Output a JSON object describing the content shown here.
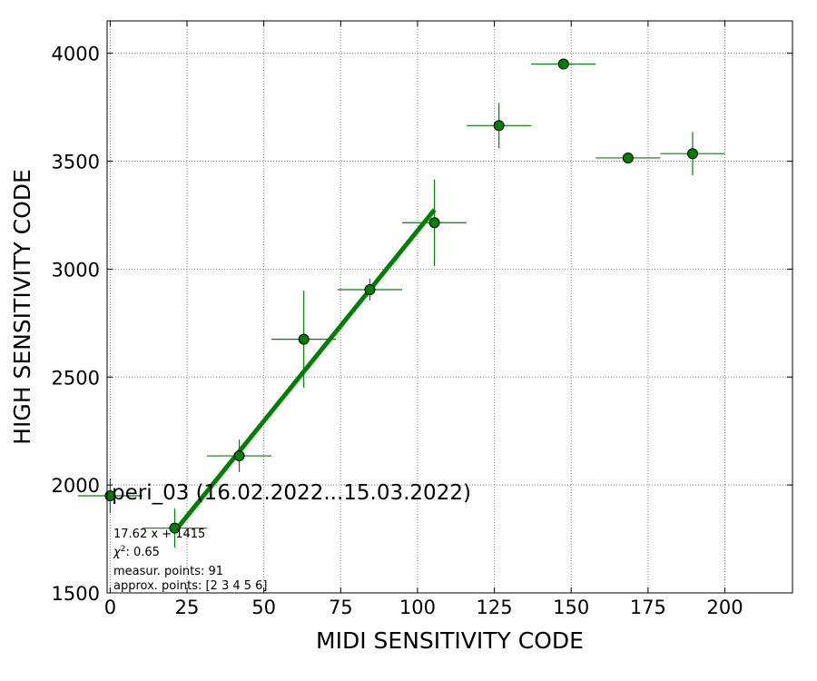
{
  "chart_data": {
    "type": "scatter",
    "xlabel": "MIDI SENSITIVITY CODE",
    "ylabel": "HIGH SENSITIVITY CODE",
    "xlim": [
      -1,
      222
    ],
    "ylim": [
      1500,
      4150
    ],
    "xticks": [
      0,
      25,
      50,
      75,
      100,
      125,
      150,
      175,
      200
    ],
    "yticks": [
      1500,
      2000,
      2500,
      3000,
      3500,
      4000
    ],
    "grid": true,
    "colors": {
      "points": "#008000",
      "edge": "#000000",
      "fit": "#008000"
    },
    "points": [
      {
        "x": 0,
        "y": 1950,
        "xerr": 10.5,
        "yerr": 80
      },
      {
        "x": 21,
        "y": 1800,
        "xerr": 10.5,
        "yerr": 90
      },
      {
        "x": 42,
        "y": 2135,
        "xerr": 10.5,
        "yerr": 75
      },
      {
        "x": 63,
        "y": 2675,
        "xerr": 10.5,
        "yerr": 225
      },
      {
        "x": 84.5,
        "y": 2905,
        "xerr": 10.5,
        "yerr": 50
      },
      {
        "x": 105.5,
        "y": 3215,
        "xerr": 10.5,
        "yerr": 200
      },
      {
        "x": 126.5,
        "y": 3665,
        "xerr": 10.5,
        "yerr": 105
      },
      {
        "x": 147.5,
        "y": 3950,
        "xerr": 10.5,
        "yerr": 0
      },
      {
        "x": 168.5,
        "y": 3515,
        "xerr": 10.5,
        "yerr": 0
      },
      {
        "x": 189.5,
        "y": 3535,
        "xerr": 10.5,
        "yerr": 100
      }
    ],
    "fit": {
      "x": [
        21,
        105.5
      ],
      "y": [
        1785,
        3275
      ]
    },
    "annotations": {
      "title": "peri_03 (16.02.2022...15.03.2022)",
      "equation": "17.62 x + 1415",
      "chi2_label": "χ",
      "chi2_sup": "2",
      "chi2_value": ": 0.65",
      "measur_points": "measur. points: 91",
      "approx_points": "approx. points: [2 3 4 5 6]"
    }
  }
}
